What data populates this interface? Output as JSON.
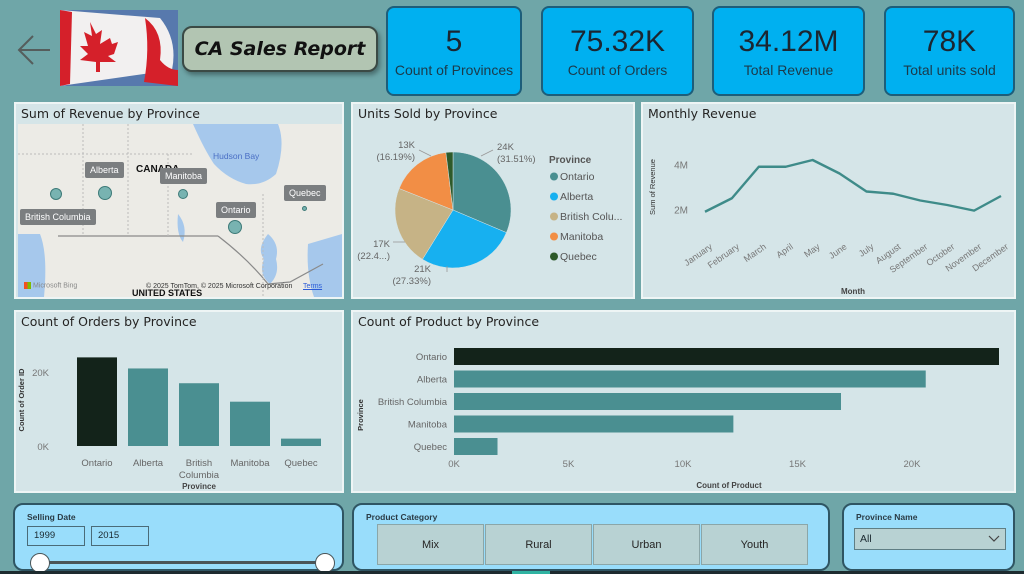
{
  "header": {
    "title": "CA Sales Report",
    "back_icon": "arrow-left-icon",
    "flag_image": "canada-flag-image"
  },
  "kpis": [
    {
      "value": "5",
      "label": "Count of Provinces"
    },
    {
      "value": "75.32K",
      "label": "Count of Orders"
    },
    {
      "value": "34.12M",
      "label": "Total Revenue"
    },
    {
      "value": "78K",
      "label": "Total units sold"
    }
  ],
  "map": {
    "title": "Sum of Revenue by Province",
    "country_label": "CANADA",
    "us_label": "UNITED STATES",
    "water_label": "Hudson Bay",
    "attribution": "© 2025 TomTom, © 2025 Microsoft Corporation",
    "terms_link": "Terms",
    "provider": "Microsoft Bing",
    "provinces": [
      {
        "name": "British Columbia",
        "relative_size": 0.6
      },
      {
        "name": "Alberta",
        "relative_size": 0.75
      },
      {
        "name": "Manitoba",
        "relative_size": 0.55
      },
      {
        "name": "Ontario",
        "relative_size": 0.8
      },
      {
        "name": "Quebec",
        "relative_size": 0.2
      }
    ]
  },
  "chart_data": [
    {
      "id": "units-pie",
      "type": "pie",
      "title": "Units Sold by Province",
      "legend_title": "Province",
      "legend_position": "right",
      "categories": [
        "Ontario",
        "Alberta",
        "British Columbia",
        "Manitoba",
        "Quebec"
      ],
      "legend_labels": [
        "Ontario",
        "Alberta",
        "British Colu...",
        "Manitoba",
        "Quebec"
      ],
      "values": [
        24000,
        21000,
        17000,
        13000,
        1500
      ],
      "percent": [
        31.51,
        27.33,
        22.4,
        16.19,
        2.57
      ],
      "data_labels": [
        {
          "value": "24K",
          "pct": "(31.51%)"
        },
        {
          "value": "21K",
          "pct": "(27.33%)"
        },
        {
          "value": "17K",
          "pct": "(22.4...)"
        },
        {
          "value": "13K",
          "pct": "(16.19%)"
        }
      ],
      "colors": [
        "#4a8f91",
        "#17b0f0",
        "#c6b386",
        "#f28e45",
        "#2e5a2a"
      ]
    },
    {
      "id": "monthly-revenue",
      "type": "line",
      "title": "Monthly Revenue",
      "xlabel": "Month",
      "ylabel": "Sum of Revenue",
      "categories": [
        "January",
        "February",
        "March",
        "April",
        "May",
        "June",
        "July",
        "August",
        "September",
        "October",
        "November",
        "December"
      ],
      "values": [
        1.9,
        2.5,
        3.9,
        3.9,
        4.2,
        3.6,
        2.8,
        2.7,
        2.4,
        2.2,
        1.95,
        2.6
      ],
      "yticks": [
        "2M",
        "4M"
      ],
      "ytick_values": [
        2,
        4
      ],
      "ylim": [
        1.0,
        5.0
      ],
      "unit": "M",
      "color": "#3e8b89"
    },
    {
      "id": "orders-by-province",
      "type": "bar",
      "title": "Count of Orders by Province",
      "xlabel": "Province",
      "ylabel": "Count of Order ID",
      "categories": [
        "Ontario",
        "Alberta",
        "British Columbia",
        "Manitoba",
        "Quebec"
      ],
      "tick_labels": [
        [
          "Ontario"
        ],
        [
          "Alberta"
        ],
        [
          "British",
          "Columbia"
        ],
        [
          "Manitoba"
        ],
        [
          "Quebec"
        ]
      ],
      "values": [
        24000,
        21000,
        17000,
        12000,
        2000
      ],
      "yticks": [
        "0K",
        "20K"
      ],
      "ytick_values": [
        0,
        20000
      ],
      "ylim": [
        0,
        26000
      ],
      "colors": [
        "#13231a",
        "#4a8f91",
        "#4a8f91",
        "#4a8f91",
        "#4a8f91"
      ]
    },
    {
      "id": "product-by-province",
      "type": "bar",
      "orientation": "horizontal",
      "title": "Count of Product by Province",
      "xlabel": "Count of Product",
      "ylabel": "Province",
      "categories": [
        "Ontario",
        "Alberta",
        "British Columbia",
        "Manitoba",
        "Quebec"
      ],
      "values": [
        23800,
        20600,
        16900,
        12200,
        1900
      ],
      "xticks": [
        "0K",
        "5K",
        "10K",
        "15K",
        "20K"
      ],
      "xtick_values": [
        0,
        5000,
        10000,
        15000,
        20000
      ],
      "xlim": [
        0,
        23800
      ],
      "colors": [
        "#13231a",
        "#4a8f91",
        "#4a8f91",
        "#4a8f91",
        "#4a8f91"
      ]
    }
  ],
  "slicers": {
    "date": {
      "title": "Selling Date",
      "start": "1999",
      "end": "2015",
      "range_fraction": [
        0,
        1
      ]
    },
    "category": {
      "title": "Product Category",
      "options": [
        "Mix",
        "Rural",
        "Urban",
        "Youth"
      ]
    },
    "province": {
      "title": "Province Name",
      "selected": "All",
      "icon": "chevron-down-icon"
    }
  }
}
